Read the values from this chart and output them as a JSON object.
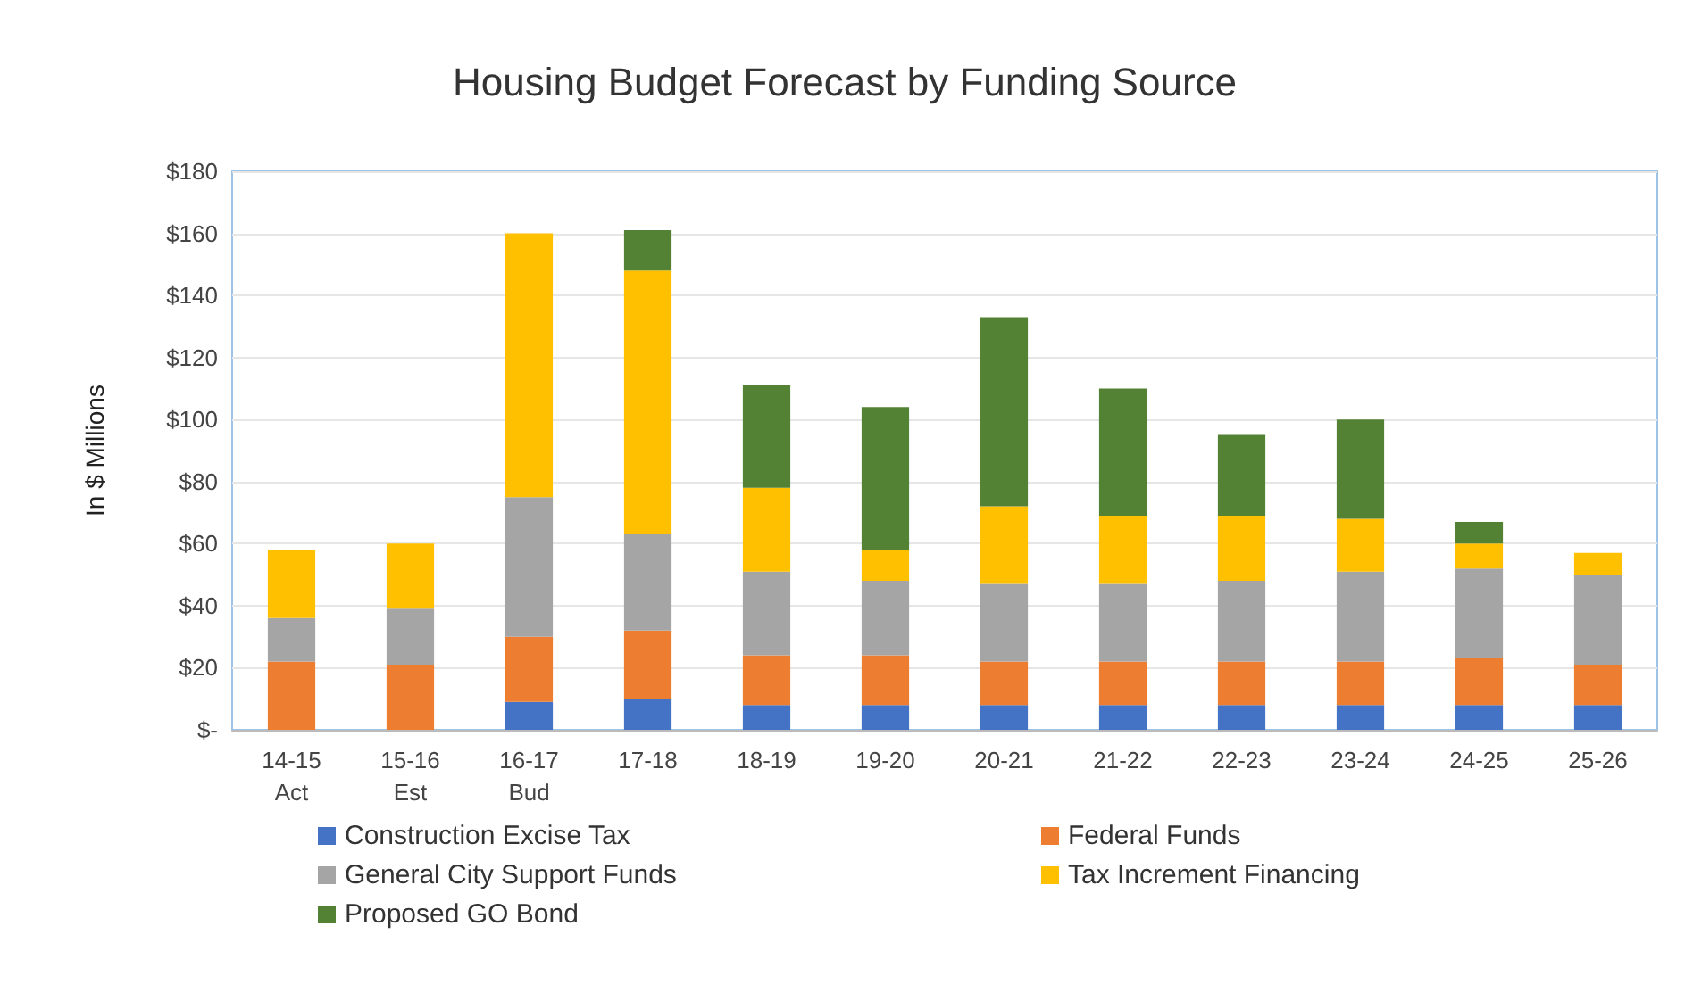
{
  "chart_data": {
    "type": "bar",
    "title": "Housing Budget Forecast by Funding Source",
    "ylabel": "In $ Millions",
    "categories": [
      "14-15\nAct",
      "15-16\nEst",
      "16-17\nBud",
      "17-18",
      "18-19",
      "19-20",
      "20-21",
      "21-22",
      "22-23",
      "23-24",
      "24-25",
      "25-26"
    ],
    "stacked": true,
    "series": [
      {
        "name": "Construction Excise Tax",
        "color": "#4472c4",
        "values": [
          0,
          0,
          9,
          10,
          8,
          8,
          8,
          8,
          8,
          8,
          8,
          8
        ]
      },
      {
        "name": "Federal Funds",
        "color": "#ed7d31",
        "values": [
          22,
          21,
          21,
          22,
          16,
          16,
          14,
          14,
          14,
          14,
          15,
          13
        ]
      },
      {
        "name": "General City Support Funds",
        "color": "#a5a5a5",
        "values": [
          14,
          18,
          45,
          31,
          27,
          24,
          25,
          25,
          26,
          29,
          29,
          29
        ]
      },
      {
        "name": "Tax Increment Financing",
        "color": "#ffc000",
        "values": [
          22,
          21,
          85,
          85,
          27,
          10,
          25,
          22,
          21,
          17,
          8,
          7
        ]
      },
      {
        "name": "Proposed GO Bond",
        "color": "#548235",
        "values": [
          0,
          0,
          0,
          13,
          33,
          46,
          61,
          41,
          26,
          32,
          7,
          0
        ]
      }
    ],
    "ylim": [
      0,
      180
    ],
    "yticks": [
      {
        "value": 0,
        "label": "$-"
      },
      {
        "value": 20,
        "label": "$20"
      },
      {
        "value": 40,
        "label": "$40"
      },
      {
        "value": 60,
        "label": "$60"
      },
      {
        "value": 80,
        "label": "$80"
      },
      {
        "value": 100,
        "label": "$100"
      },
      {
        "value": 120,
        "label": "$120"
      },
      {
        "value": 140,
        "label": "$140"
      },
      {
        "value": 160,
        "label": "$160"
      },
      {
        "value": 180,
        "label": "$180"
      }
    ],
    "grid": "y",
    "legend": "bottom"
  }
}
